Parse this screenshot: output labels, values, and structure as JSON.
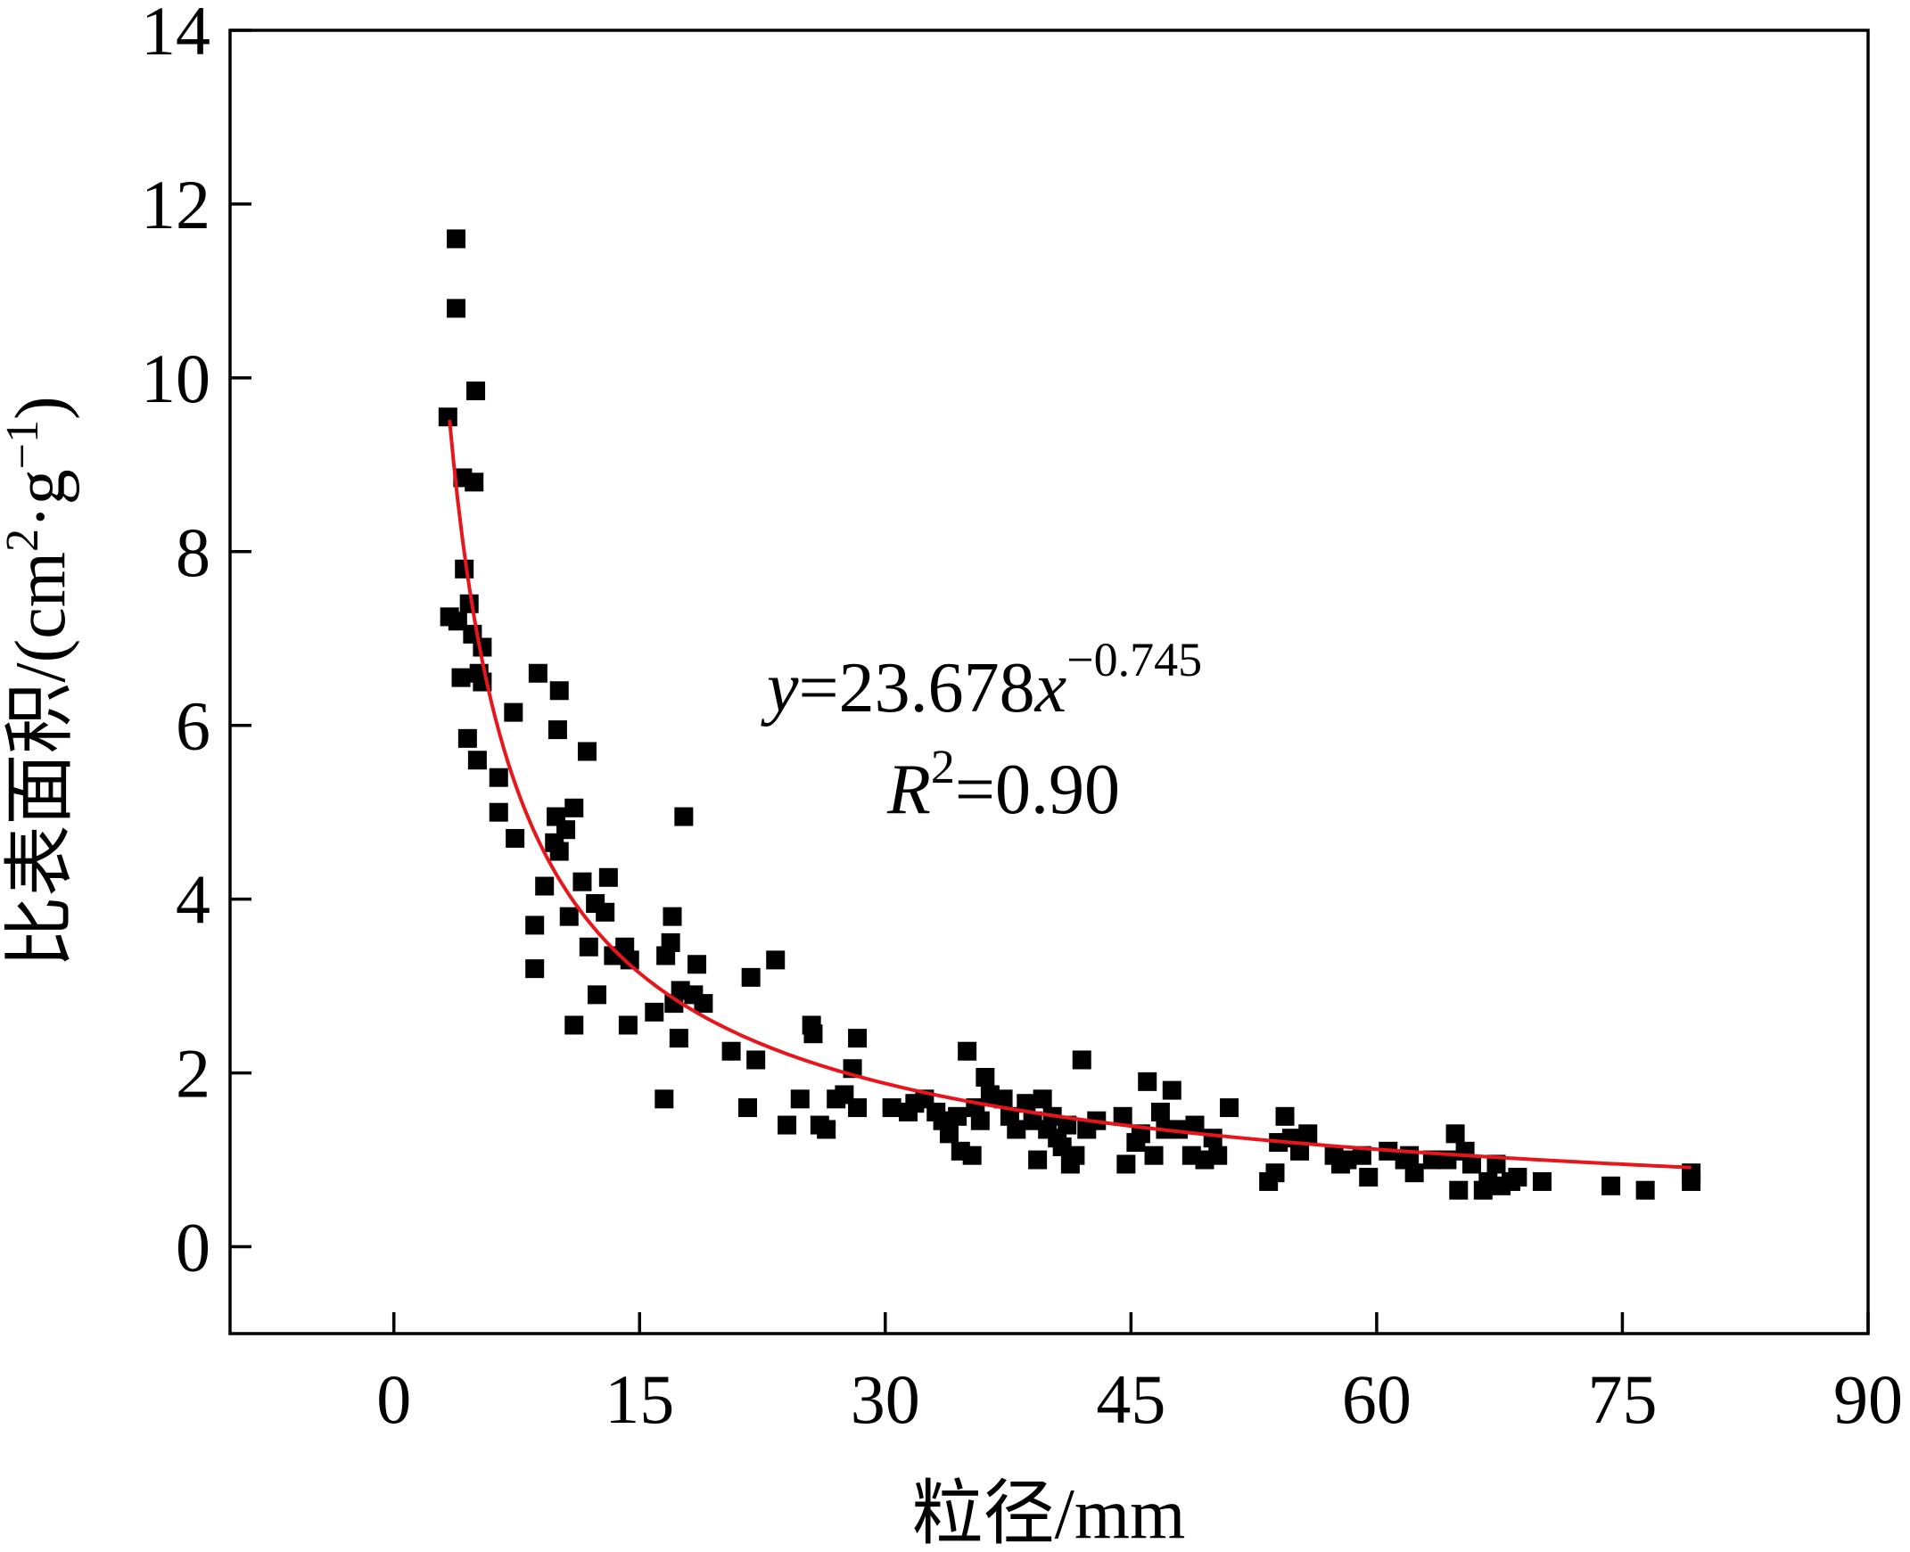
{
  "chart_data": {
    "type": "scatter",
    "xlabel": "粒径/mm",
    "ylabel_text": "比表面积/(cm",
    "ylabel_sup1": "2",
    "ylabel_mid": "·g",
    "ylabel_sup2": "−1",
    "ylabel_end": ")",
    "xlim": [
      -10,
      90
    ],
    "ylim": [
      -1,
      14
    ],
    "xticks": [
      0,
      15,
      30,
      45,
      60,
      75,
      90
    ],
    "yticks": [
      0,
      2,
      4,
      6,
      8,
      10,
      12,
      14
    ],
    "grid": false,
    "legend": "none",
    "colors": {
      "points": "#000000",
      "fit": "#e8151b",
      "axes": "#000000"
    },
    "fit": {
      "a": 23.678,
      "b": -0.745,
      "x_range": [
        3.4,
        79.2
      ],
      "eq_y": "y",
      "eq_eq": "=23.678",
      "eq_x": "x",
      "eq_exp": "−0.745",
      "r_R": "R",
      "r_sup": "2",
      "r_val": "=0.90"
    },
    "points": [
      [
        3.3,
        9.55
      ],
      [
        3.8,
        11.6
      ],
      [
        3.8,
        10.8
      ],
      [
        4.2,
        8.85
      ],
      [
        4.9,
        8.8
      ],
      [
        5.0,
        9.85
      ],
      [
        4.3,
        7.8
      ],
      [
        3.4,
        7.25
      ],
      [
        3.9,
        7.2
      ],
      [
        4.6,
        7.4
      ],
      [
        4.8,
        7.05
      ],
      [
        5.4,
        6.9
      ],
      [
        4.1,
        6.55
      ],
      [
        5.2,
        6.6
      ],
      [
        5.4,
        6.5
      ],
      [
        4.5,
        5.85
      ],
      [
        5.1,
        5.6
      ],
      [
        6.4,
        5.4
      ],
      [
        6.4,
        5.0
      ],
      [
        7.3,
        6.15
      ],
      [
        7.4,
        4.7
      ],
      [
        8.8,
        6.6
      ],
      [
        10.1,
        6.4
      ],
      [
        10.0,
        5.95
      ],
      [
        11.8,
        5.7
      ],
      [
        9.9,
        4.95
      ],
      [
        11.0,
        5.05
      ],
      [
        10.5,
        4.8
      ],
      [
        9.8,
        4.65
      ],
      [
        10.1,
        4.55
      ],
      [
        9.2,
        4.15
      ],
      [
        11.5,
        4.2
      ],
      [
        13.1,
        4.25
      ],
      [
        12.3,
        3.95
      ],
      [
        12.9,
        3.85
      ],
      [
        10.7,
        3.8
      ],
      [
        8.6,
        3.7
      ],
      [
        11.9,
        3.45
      ],
      [
        14.1,
        3.45
      ],
      [
        13.4,
        3.35
      ],
      [
        14.4,
        3.3
      ],
      [
        8.6,
        3.2
      ],
      [
        12.4,
        2.9
      ],
      [
        11.0,
        2.55
      ],
      [
        14.3,
        2.55
      ],
      [
        15.9,
        2.7
      ],
      [
        17.0,
        3.8
      ],
      [
        16.9,
        3.5
      ],
      [
        16.6,
        3.35
      ],
      [
        17.5,
        2.95
      ],
      [
        18.3,
        2.9
      ],
      [
        18.5,
        3.25
      ],
      [
        18.9,
        2.8
      ],
      [
        17.1,
        2.8
      ],
      [
        17.4,
        2.4
      ],
      [
        17.7,
        4.95
      ],
      [
        16.5,
        1.7
      ],
      [
        20.6,
        2.25
      ],
      [
        21.8,
        3.1
      ],
      [
        23.3,
        3.3
      ],
      [
        22.1,
        2.15
      ],
      [
        21.6,
        1.6
      ],
      [
        24.0,
        1.4
      ],
      [
        24.8,
        1.7
      ],
      [
        25.5,
        2.55
      ],
      [
        25.6,
        2.45
      ],
      [
        26.0,
        1.4
      ],
      [
        26.4,
        1.35
      ],
      [
        27.0,
        1.7
      ],
      [
        27.5,
        1.75
      ],
      [
        28.0,
        2.05
      ],
      [
        28.3,
        2.4
      ],
      [
        28.3,
        1.6
      ],
      [
        30.4,
        1.6
      ],
      [
        31.4,
        1.55
      ],
      [
        31.8,
        1.65
      ],
      [
        32.4,
        1.7
      ],
      [
        33.1,
        1.55
      ],
      [
        33.5,
        1.45
      ],
      [
        33.9,
        1.3
      ],
      [
        34.4,
        1.5
      ],
      [
        34.6,
        1.1
      ],
      [
        35.0,
        2.25
      ],
      [
        35.3,
        1.05
      ],
      [
        35.5,
        1.6
      ],
      [
        35.8,
        1.45
      ],
      [
        36.1,
        1.95
      ],
      [
        36.4,
        1.75
      ],
      [
        37.2,
        1.7
      ],
      [
        37.6,
        1.5
      ],
      [
        38.0,
        1.35
      ],
      [
        38.6,
        1.65
      ],
      [
        39.0,
        1.45
      ],
      [
        39.3,
        1.0
      ],
      [
        39.6,
        1.7
      ],
      [
        39.9,
        1.35
      ],
      [
        40.2,
        1.5
      ],
      [
        40.5,
        1.25
      ],
      [
        40.8,
        1.15
      ],
      [
        41.1,
        1.4
      ],
      [
        41.3,
        0.95
      ],
      [
        41.6,
        1.05
      ],
      [
        42.0,
        2.15
      ],
      [
        42.3,
        1.35
      ],
      [
        42.9,
        1.45
      ],
      [
        44.5,
        1.5
      ],
      [
        44.7,
        0.95
      ],
      [
        45.3,
        1.2
      ],
      [
        45.6,
        1.3
      ],
      [
        46.0,
        1.9
      ],
      [
        46.4,
        1.05
      ],
      [
        46.8,
        1.55
      ],
      [
        47.1,
        1.35
      ],
      [
        47.5,
        1.8
      ],
      [
        47.9,
        1.35
      ],
      [
        48.7,
        1.05
      ],
      [
        48.9,
        1.4
      ],
      [
        49.5,
        1.0
      ],
      [
        50.0,
        1.25
      ],
      [
        50.3,
        1.05
      ],
      [
        51.0,
        1.6
      ],
      [
        53.4,
        0.75
      ],
      [
        53.8,
        0.85
      ],
      [
        54.0,
        1.2
      ],
      [
        54.4,
        1.5
      ],
      [
        54.8,
        1.25
      ],
      [
        55.3,
        1.1
      ],
      [
        55.8,
        1.3
      ],
      [
        57.4,
        1.05
      ],
      [
        57.8,
        0.95
      ],
      [
        58.2,
        1.0
      ],
      [
        59.1,
        1.05
      ],
      [
        59.5,
        0.8
      ],
      [
        60.7,
        1.1
      ],
      [
        61.7,
        1.0
      ],
      [
        62.0,
        1.05
      ],
      [
        62.3,
        0.85
      ],
      [
        63.4,
        1.0
      ],
      [
        64.3,
        1.0
      ],
      [
        64.8,
        1.3
      ],
      [
        65.0,
        0.65
      ],
      [
        65.4,
        1.1
      ],
      [
        65.8,
        0.95
      ],
      [
        66.5,
        0.65
      ],
      [
        66.8,
        0.75
      ],
      [
        67.3,
        0.95
      ],
      [
        67.6,
        0.7
      ],
      [
        68.2,
        0.75
      ],
      [
        68.6,
        0.8
      ],
      [
        70.1,
        0.75
      ],
      [
        74.3,
        0.7
      ],
      [
        76.4,
        0.65
      ],
      [
        79.2,
        0.75
      ],
      [
        79.2,
        0.85
      ]
    ]
  }
}
